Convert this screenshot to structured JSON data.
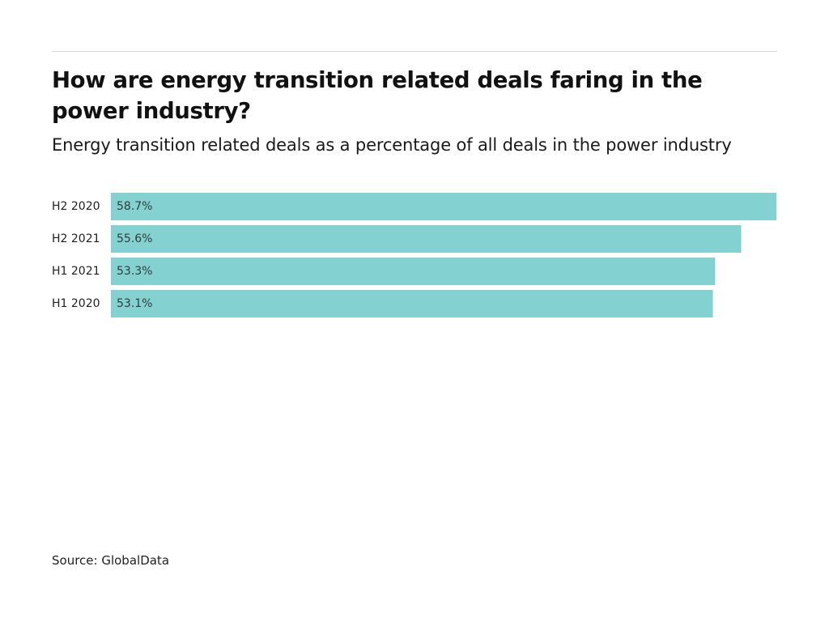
{
  "chart_data": {
    "type": "bar",
    "orientation": "horizontal",
    "title": "How are energy transition related deals faring in the power industry?",
    "subtitle": "Energy transition related deals as a percentage of all deals in the power industry",
    "categories": [
      "H2 2020",
      "H2 2021",
      "H1 2021",
      "H1 2020"
    ],
    "values": [
      58.7,
      55.6,
      53.3,
      53.1
    ],
    "value_labels": [
      "58.7%",
      "55.6%",
      "53.3%",
      "53.1%"
    ],
    "unit": "%",
    "xlim": [
      0,
      58.7
    ],
    "grid": false,
    "bar_color": "#84d1d1",
    "source": "Source: GlobalData"
  }
}
